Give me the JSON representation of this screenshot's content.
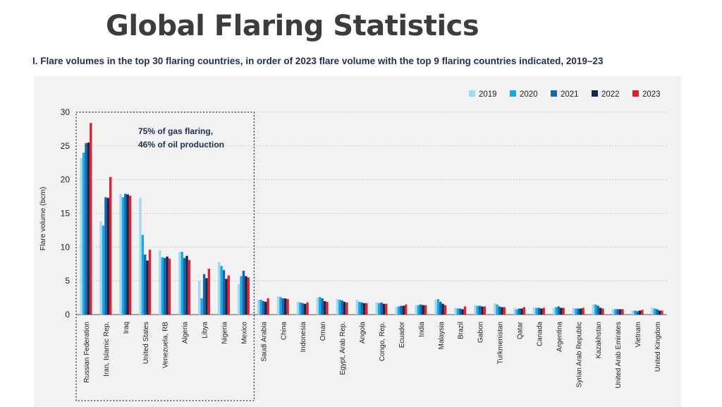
{
  "slide_title": "Global Flaring Statistics",
  "chart_data": {
    "type": "bar",
    "title": "I. Flare volumes in the top 30 flaring countries, in order of 2023 flare volume with the top 9 flaring countries indicated, 2019–23",
    "xlabel": "",
    "ylabel": "Flare volume (bcm)",
    "ylim": [
      0,
      30
    ],
    "yticks": [
      0,
      5,
      10,
      15,
      20,
      25,
      30
    ],
    "grid": true,
    "legend_position": "top-right",
    "annotation": [
      "75% of gas flaring,",
      "46% of oil production"
    ],
    "highlight_group": "top 9 flaring countries (dotted box)",
    "categories": [
      "Russian Federation",
      "Iran, Islamic Rep.",
      "Iraq",
      "United States",
      "Venezuela, RB",
      "Algeria",
      "Libya",
      "Nigeria",
      "Mexico",
      "Saudi Arabia",
      "China",
      "Indonesia",
      "Oman",
      "Egypt, Arab Rep.",
      "Angola",
      "Congo, Rep.",
      "Ecuador",
      "India",
      "Malaysia",
      "Brazil",
      "Gabon",
      "Turkmenistan",
      "Qatar",
      "Canada",
      "Argentina",
      "Syrian Arab Republic",
      "Kazakhstan",
      "United Arab Emirates",
      "Vietnam",
      "United Kingdom"
    ],
    "series": [
      {
        "name": "2019",
        "color": "#a6d8f0",
        "values": [
          23.2,
          13.8,
          17.9,
          17.3,
          9.5,
          9.3,
          5.0,
          7.8,
          4.5,
          2.2,
          2.7,
          1.9,
          2.5,
          2.3,
          2.2,
          1.8,
          1.1,
          1.4,
          2.2,
          1.0,
          1.4,
          1.7,
          1.0,
          1.1,
          1.0,
          1.0,
          1.5,
          0.8,
          0.6,
          1.0
        ]
      },
      {
        "name": "2020",
        "color": "#1aa8e0",
        "values": [
          24.0,
          13.2,
          17.4,
          11.8,
          8.5,
          9.3,
          2.4,
          7.2,
          5.7,
          2.2,
          2.6,
          1.8,
          2.6,
          2.2,
          1.9,
          1.7,
          1.2,
          1.4,
          2.3,
          0.9,
          1.3,
          1.5,
          0.8,
          1.0,
          1.1,
          0.9,
          1.5,
          0.8,
          0.6,
          0.9
        ]
      },
      {
        "name": "2021",
        "color": "#1565b5",
        "values": [
          25.4,
          17.4,
          17.9,
          8.9,
          8.4,
          8.4,
          6.0,
          6.6,
          6.5,
          2.0,
          2.4,
          1.7,
          2.4,
          2.1,
          1.8,
          1.8,
          1.3,
          1.5,
          1.9,
          0.9,
          1.3,
          1.2,
          0.9,
          1.0,
          1.2,
          0.9,
          1.3,
          0.8,
          0.5,
          0.8
        ]
      },
      {
        "name": "2022",
        "color": "#15294a",
        "values": [
          25.5,
          17.3,
          17.8,
          8.0,
          8.6,
          8.7,
          5.4,
          5.3,
          5.7,
          1.9,
          2.4,
          1.6,
          2.0,
          1.9,
          1.7,
          1.6,
          1.3,
          1.4,
          1.6,
          0.8,
          1.2,
          1.1,
          0.9,
          0.9,
          1.0,
          0.9,
          1.0,
          0.8,
          0.6,
          0.6
        ]
      },
      {
        "name": "2023",
        "color": "#e0222e",
        "values": [
          28.4,
          20.4,
          17.6,
          9.6,
          8.3,
          8.1,
          6.8,
          5.8,
          5.5,
          2.4,
          2.3,
          1.8,
          1.9,
          1.8,
          1.7,
          1.6,
          1.5,
          1.4,
          1.4,
          1.2,
          1.2,
          1.1,
          1.1,
          1.0,
          1.0,
          1.0,
          0.9,
          0.8,
          0.7,
          0.6
        ]
      }
    ]
  }
}
